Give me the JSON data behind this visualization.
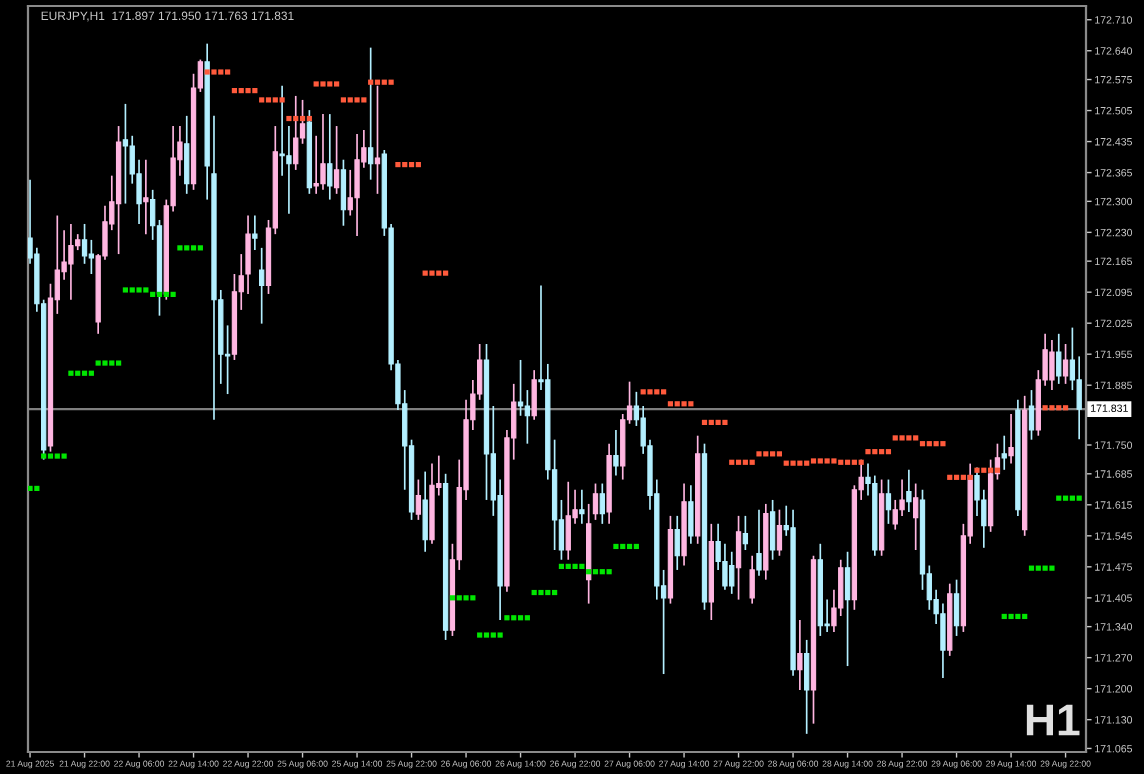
{
  "chart_data": {
    "type": "candlestick",
    "title": "EURJPY,H1  171.897 171.950 171.763 171.831",
    "annotations": [
      "H1"
    ],
    "categories": [
      "21 Aug 2025",
      null,
      null,
      null,
      null,
      null,
      null,
      null,
      "21 Aug 22:00",
      null,
      null,
      null,
      null,
      null,
      null,
      null,
      "22 Aug 06:00",
      null,
      null,
      null,
      null,
      null,
      null,
      null,
      "22 Aug 14:00",
      null,
      null,
      null,
      null,
      null,
      null,
      null,
      "22 Aug 22:00",
      null,
      null,
      null,
      null,
      null,
      null,
      null,
      "25 Aug 06:00",
      null,
      null,
      null,
      null,
      null,
      null,
      null,
      "25 Aug 14:00",
      null,
      null,
      null,
      null,
      null,
      null,
      null,
      "25 Aug 22:00",
      null,
      null,
      null,
      null,
      null,
      null,
      null,
      "26 Aug 06:00",
      null,
      null,
      null,
      null,
      null,
      null,
      null,
      "26 Aug 14:00",
      null,
      null,
      null,
      null,
      null,
      null,
      null,
      "26 Aug 22:00",
      null,
      null,
      null,
      null,
      null,
      null,
      null,
      "27 Aug 06:00",
      null,
      null,
      null,
      null,
      null,
      null,
      null,
      "27 Aug 14:00",
      null,
      null,
      null,
      null,
      null,
      null,
      null,
      "27 Aug 22:00",
      null,
      null,
      null,
      null,
      null,
      null,
      null,
      "28 Aug 06:00",
      null,
      null,
      null,
      null,
      null,
      null,
      null,
      "28 Aug 14:00",
      null,
      null,
      null,
      null,
      null,
      null,
      null,
      "28 Aug 22:00",
      null,
      null,
      null,
      null,
      null,
      null,
      null,
      "29 Aug 06:00",
      null,
      null,
      null,
      null,
      null,
      null,
      null,
      "29 Aug 14:00",
      null,
      null,
      null,
      null,
      null,
      null,
      null,
      "29 Aug 22:00",
      null,
      null
    ],
    "ohlc": [
      [
        172.217,
        172.349,
        172.159,
        172.172
      ],
      [
        172.181,
        172.195,
        172.051,
        172.069
      ],
      [
        172.069,
        172.078,
        171.717,
        171.739
      ],
      [
        171.748,
        172.114,
        171.735,
        172.082
      ],
      [
        172.078,
        172.268,
        172.046,
        172.145
      ],
      [
        172.141,
        172.235,
        172.123,
        172.163
      ],
      [
        172.159,
        172.249,
        172.078,
        172.2
      ],
      [
        172.2,
        172.226,
        172.19,
        172.213
      ],
      [
        172.213,
        172.249,
        172.159,
        172.177
      ],
      [
        172.181,
        172.213,
        172.136,
        172.172
      ],
      [
        172.028,
        172.181,
        172.001,
        172.177
      ],
      [
        172.177,
        172.29,
        172.168,
        172.254
      ],
      [
        172.249,
        172.358,
        172.235,
        172.299
      ],
      [
        172.295,
        172.47,
        172.181,
        172.434
      ],
      [
        172.439,
        172.52,
        172.295,
        172.425
      ],
      [
        172.425,
        172.448,
        172.34,
        172.362
      ],
      [
        172.362,
        172.394,
        172.249,
        172.295
      ],
      [
        172.299,
        172.394,
        172.226,
        172.308
      ],
      [
        172.304,
        172.326,
        172.213,
        172.245
      ],
      [
        172.245,
        172.258,
        172.042,
        172.091
      ],
      [
        172.091,
        172.304,
        172.078,
        172.29
      ],
      [
        172.29,
        172.47,
        172.277,
        172.398
      ],
      [
        172.394,
        172.47,
        172.358,
        172.434
      ],
      [
        172.43,
        172.493,
        172.317,
        172.34
      ],
      [
        172.34,
        172.588,
        172.326,
        172.556
      ],
      [
        172.556,
        172.62,
        172.547,
        172.615
      ],
      [
        172.615,
        172.656,
        172.304,
        172.38
      ],
      [
        172.362,
        172.493,
        171.807,
        172.078
      ],
      [
        172.078,
        172.1,
        171.888,
        171.955
      ],
      [
        171.955,
        172.02,
        171.865,
        171.951
      ],
      [
        171.955,
        172.136,
        171.942,
        172.096
      ],
      [
        172.096,
        172.181,
        172.055,
        172.132
      ],
      [
        172.136,
        172.268,
        172.091,
        172.226
      ],
      [
        172.226,
        172.268,
        172.19,
        172.217
      ],
      [
        172.145,
        172.195,
        172.024,
        172.11
      ],
      [
        172.11,
        172.258,
        172.091,
        172.24
      ],
      [
        172.24,
        172.47,
        172.226,
        172.412
      ],
      [
        172.407,
        172.561,
        172.358,
        172.403
      ],
      [
        172.403,
        172.47,
        172.272,
        172.385
      ],
      [
        172.385,
        172.538,
        172.371,
        172.443
      ],
      [
        172.443,
        172.529,
        172.43,
        172.475
      ],
      [
        172.479,
        172.506,
        172.317,
        172.331
      ],
      [
        172.335,
        172.448,
        172.317,
        172.34
      ],
      [
        172.34,
        172.497,
        172.326,
        172.385
      ],
      [
        172.385,
        172.497,
        172.304,
        172.335
      ],
      [
        172.331,
        172.47,
        172.317,
        172.371
      ],
      [
        172.371,
        172.394,
        172.245,
        172.281
      ],
      [
        172.281,
        172.371,
        172.268,
        172.308
      ],
      [
        172.308,
        172.452,
        172.222,
        172.394
      ],
      [
        172.389,
        172.461,
        172.376,
        172.421
      ],
      [
        172.421,
        172.647,
        172.349,
        172.385
      ],
      [
        172.385,
        172.561,
        172.317,
        172.398
      ],
      [
        172.407,
        172.416,
        172.222,
        172.24
      ],
      [
        172.24,
        172.249,
        171.919,
        171.933
      ],
      [
        171.933,
        171.942,
        171.829,
        171.843
      ],
      [
        171.843,
        171.874,
        171.649,
        171.748
      ],
      [
        171.748,
        171.762,
        171.581,
        171.599
      ],
      [
        171.594,
        171.672,
        171.581,
        171.636
      ],
      [
        171.626,
        171.69,
        171.509,
        171.536
      ],
      [
        171.536,
        171.708,
        171.527,
        171.659
      ],
      [
        171.654,
        171.726,
        171.636,
        171.663
      ],
      [
        171.663,
        171.685,
        171.31,
        171.332
      ],
      [
        171.332,
        171.527,
        171.319,
        171.491
      ],
      [
        171.491,
        171.717,
        171.468,
        171.654
      ],
      [
        171.649,
        171.852,
        171.626,
        171.807
      ],
      [
        171.807,
        171.897,
        171.784,
        171.865
      ],
      [
        171.865,
        171.978,
        171.852,
        171.942
      ],
      [
        171.942,
        171.978,
        171.626,
        171.73
      ],
      [
        171.73,
        171.838,
        171.59,
        171.626
      ],
      [
        171.636,
        171.672,
        171.355,
        171.432
      ],
      [
        171.432,
        171.784,
        171.419,
        171.766
      ],
      [
        171.766,
        171.888,
        171.717,
        171.847
      ],
      [
        171.847,
        171.942,
        171.816,
        171.838
      ],
      [
        171.838,
        171.874,
        171.753,
        171.816
      ],
      [
        171.816,
        171.919,
        171.807,
        171.897
      ],
      [
        171.897,
        172.11,
        171.874,
        171.893
      ],
      [
        171.897,
        171.933,
        171.672,
        171.694
      ],
      [
        171.694,
        171.762,
        171.513,
        171.581
      ],
      [
        171.581,
        171.626,
        171.491,
        171.513
      ],
      [
        171.513,
        171.667,
        171.491,
        171.59
      ],
      [
        171.586,
        171.649,
        171.572,
        171.604
      ],
      [
        171.604,
        171.649,
        171.572,
        171.595
      ],
      [
        171.446,
        171.617,
        171.392,
        171.572
      ],
      [
        171.595,
        171.663,
        171.581,
        171.64
      ],
      [
        171.64,
        171.663,
        171.572,
        171.595
      ],
      [
        171.599,
        171.753,
        171.572,
        171.726
      ],
      [
        171.726,
        171.784,
        171.681,
        171.703
      ],
      [
        171.703,
        171.82,
        171.672,
        171.807
      ],
      [
        171.807,
        171.893,
        171.798,
        171.838
      ],
      [
        171.838,
        171.87,
        171.793,
        171.807
      ],
      [
        171.811,
        171.838,
        171.73,
        171.748
      ],
      [
        171.748,
        171.762,
        171.604,
        171.636
      ],
      [
        171.64,
        171.672,
        171.401,
        171.432
      ],
      [
        171.432,
        171.468,
        171.233,
        171.405
      ],
      [
        171.405,
        171.59,
        171.392,
        171.559
      ],
      [
        171.559,
        171.59,
        171.468,
        171.5
      ],
      [
        171.5,
        171.663,
        171.478,
        171.622
      ],
      [
        171.622,
        171.659,
        171.527,
        171.545
      ],
      [
        171.545,
        171.771,
        171.527,
        171.73
      ],
      [
        171.73,
        171.753,
        171.378,
        171.396
      ],
      [
        171.396,
        171.572,
        171.355,
        171.532
      ],
      [
        171.532,
        171.572,
        171.468,
        171.487
      ],
      [
        171.487,
        171.527,
        171.423,
        171.432
      ],
      [
        171.478,
        171.509,
        171.414,
        171.432
      ],
      [
        171.473,
        171.59,
        171.401,
        171.554
      ],
      [
        171.55,
        171.59,
        171.513,
        171.527
      ],
      [
        171.405,
        171.5,
        171.392,
        171.468
      ],
      [
        171.505,
        171.604,
        171.455,
        171.468
      ],
      [
        171.468,
        171.617,
        171.446,
        171.595
      ],
      [
        171.599,
        171.626,
        171.491,
        171.513
      ],
      [
        171.513,
        171.604,
        171.5,
        171.568
      ],
      [
        171.568,
        171.613,
        171.545,
        171.559
      ],
      [
        171.563,
        171.604,
        171.229,
        171.243
      ],
      [
        171.243,
        171.355,
        171.197,
        171.279
      ],
      [
        171.279,
        171.31,
        171.098,
        171.197
      ],
      [
        171.197,
        171.5,
        171.121,
        171.491
      ],
      [
        171.491,
        171.527,
        171.319,
        171.342
      ],
      [
        171.346,
        171.401,
        171.328,
        171.342
      ],
      [
        171.342,
        171.423,
        171.328,
        171.382
      ],
      [
        171.382,
        171.491,
        171.364,
        171.473
      ],
      [
        171.473,
        171.509,
        171.251,
        171.401
      ],
      [
        171.401,
        171.659,
        171.378,
        171.649
      ],
      [
        171.649,
        171.717,
        171.626,
        171.677
      ],
      [
        171.677,
        171.708,
        171.636,
        171.663
      ],
      [
        171.663,
        171.681,
        171.5,
        171.513
      ],
      [
        171.513,
        171.672,
        171.5,
        171.64
      ],
      [
        171.64,
        171.672,
        171.572,
        171.604
      ],
      [
        171.572,
        171.626,
        171.559,
        171.604
      ],
      [
        171.604,
        171.672,
        171.59,
        171.626
      ],
      [
        171.645,
        171.694,
        171.599,
        171.622
      ],
      [
        171.586,
        171.663,
        171.513,
        171.631
      ],
      [
        171.626,
        171.649,
        171.423,
        171.459
      ],
      [
        171.459,
        171.478,
        171.378,
        171.401
      ],
      [
        171.401,
        171.423,
        171.346,
        171.369
      ],
      [
        171.369,
        171.392,
        171.224,
        171.287
      ],
      [
        171.287,
        171.437,
        171.274,
        171.414
      ],
      [
        171.414,
        171.446,
        171.319,
        171.342
      ],
      [
        171.342,
        171.572,
        171.328,
        171.545
      ],
      [
        171.545,
        171.708,
        171.527,
        171.681
      ],
      [
        171.681,
        171.699,
        171.59,
        171.626
      ],
      [
        171.626,
        171.649,
        171.518,
        171.568
      ],
      [
        171.568,
        171.717,
        171.554,
        171.685
      ],
      [
        171.685,
        171.753,
        171.672,
        171.721
      ],
      [
        171.73,
        171.771,
        171.694,
        171.721
      ],
      [
        171.726,
        171.82,
        171.708,
        171.744
      ],
      [
        171.829,
        171.852,
        171.59,
        171.604
      ],
      [
        171.559,
        171.861,
        171.545,
        171.829
      ],
      [
        171.838,
        171.874,
        171.762,
        171.784
      ],
      [
        171.784,
        171.919,
        171.771,
        171.897
      ],
      [
        171.897,
        172.001,
        171.884,
        171.965
      ],
      [
        171.897,
        171.987,
        171.874,
        171.96
      ],
      [
        171.96,
        172.001,
        171.888,
        171.906
      ],
      [
        171.906,
        171.978,
        171.888,
        171.942
      ],
      [
        171.942,
        172.015,
        171.874,
        171.897
      ],
      [
        171.897,
        171.95,
        171.763,
        171.831
      ]
    ],
    "colors": [
      "#b3efff",
      "#b3efff",
      "#b3efff",
      "#ffb6e1",
      "#ffb6e1",
      "#ffb6e1",
      "#ffb6e1",
      "#ffb6e1",
      "#b3efff",
      "#b3efff",
      "#ffb6e1",
      "#ffb6e1",
      "#ffb6e1",
      "#ffb6e1",
      "#b3efff",
      "#b3efff",
      "#b3efff",
      "#ffb6e1",
      "#b3efff",
      "#b3efff",
      "#ffb6e1",
      "#ffb6e1",
      "#ffb6e1",
      "#b3efff",
      "#ffb6e1",
      "#ffb6e1",
      "#b3efff",
      "#b3efff",
      "#b3efff",
      "#b3efff",
      "#ffb6e1",
      "#ffb6e1",
      "#ffb6e1",
      "#b3efff",
      "#b3efff",
      "#ffb6e1",
      "#ffb6e1",
      "#b3efff",
      "#b3efff",
      "#ffb6e1",
      "#ffb6e1",
      "#b3efff",
      "#ffb6e1",
      "#ffb6e1",
      "#b3efff",
      "#ffb6e1",
      "#b3efff",
      "#ffb6e1",
      "#ffb6e1",
      "#ffb6e1",
      "#b3efff",
      "#ffb6e1",
      "#b3efff",
      "#b3efff",
      "#b3efff",
      "#b3efff",
      "#b3efff",
      "#ffb6e1",
      "#b3efff",
      "#ffb6e1",
      "#ffb6e1",
      "#b3efff",
      "#ffb6e1",
      "#ffb6e1",
      "#ffb6e1",
      "#ffb6e1",
      "#ffb6e1",
      "#b3efff",
      "#b3efff",
      "#b3efff",
      "#ffb6e1",
      "#ffb6e1",
      "#b3efff",
      "#b3efff",
      "#ffb6e1",
      "#b3efff",
      "#b3efff",
      "#b3efff",
      "#b3efff",
      "#ffb6e1",
      "#ffb6e1",
      "#b3efff",
      "#ffb6e1",
      "#ffb6e1",
      "#b3efff",
      "#ffb6e1",
      "#b3efff",
      "#ffb6e1",
      "#ffb6e1",
      "#b3efff",
      "#b3efff",
      "#b3efff",
      "#b3efff",
      "#b3efff",
      "#ffb6e1",
      "#b3efff",
      "#ffb6e1",
      "#b3efff",
      "#ffb6e1",
      "#b3efff",
      "#ffb6e1",
      "#b3efff",
      "#b3efff",
      "#b3efff",
      "#ffb6e1",
      "#b3efff",
      "#ffb6e1",
      "#b3efff",
      "#ffb6e1",
      "#b3efff",
      "#ffb6e1",
      "#b3efff",
      "#b3efff",
      "#ffb6e1",
      "#b3efff",
      "#ffb6e1",
      "#b3efff",
      "#b3efff",
      "#ffb6e1",
      "#ffb6e1",
      "#b3efff",
      "#ffb6e1",
      "#ffb6e1",
      "#b3efff",
      "#b3efff",
      "#ffb6e1",
      "#b3efff",
      "#ffb6e1",
      "#ffb6e1",
      "#b3efff",
      "#ffb6e1",
      "#b3efff",
      "#b3efff",
      "#b3efff",
      "#b3efff",
      "#ffb6e1",
      "#b3efff",
      "#ffb6e1",
      "#ffb6e1",
      "#b3efff",
      "#b3efff",
      "#ffb6e1",
      "#ffb6e1",
      "#b3efff",
      "#ffb6e1",
      "#b3efff",
      "#ffb6e1",
      "#b3efff",
      "#ffb6e1",
      "#ffb6e1",
      "#ffb6e1",
      "#b3efff",
      "#ffb6e1",
      "#b3efff",
      "#b3efff"
    ],
    "series": [
      {
        "type": "scatter",
        "color": "#ff5a3c",
        "marker": "square",
        "values": [
          null,
          null,
          null,
          null,
          null,
          null,
          null,
          null,
          null,
          null,
          null,
          null,
          null,
          null,
          null,
          null,
          null,
          null,
          null,
          null,
          null,
          null,
          null,
          null,
          null,
          null,
          172.592,
          172.592,
          172.592,
          172.592,
          172.55,
          172.55,
          172.55,
          172.55,
          172.529,
          172.529,
          172.529,
          172.529,
          172.487,
          172.487,
          172.487,
          172.487,
          172.565,
          172.565,
          172.565,
          172.565,
          172.529,
          172.529,
          172.529,
          172.529,
          172.569,
          172.569,
          172.569,
          172.569,
          172.383,
          172.383,
          172.383,
          172.383,
          172.138,
          172.138,
          172.138,
          172.138,
          null,
          null,
          null,
          null,
          null,
          null,
          null,
          null,
          null,
          null,
          null,
          null,
          null,
          null,
          null,
          null,
          null,
          null,
          null,
          null,
          null,
          null,
          null,
          null,
          null,
          null,
          null,
          null,
          171.87,
          171.87,
          171.87,
          171.87,
          171.843,
          171.843,
          171.843,
          171.843,
          null,
          171.801,
          171.801,
          171.801,
          171.801,
          171.711,
          171.711,
          171.711,
          171.711,
          171.73,
          171.73,
          171.73,
          171.73,
          171.709,
          171.709,
          171.709,
          171.709,
          171.714,
          171.714,
          171.714,
          171.714,
          171.711,
          171.711,
          171.711,
          171.711,
          171.735,
          171.735,
          171.735,
          171.735,
          171.766,
          171.766,
          171.766,
          171.766,
          171.753,
          171.753,
          171.753,
          171.753,
          171.677,
          171.677,
          171.677,
          171.677,
          171.693,
          171.693,
          171.693,
          171.693,
          null,
          null,
          null,
          null,
          null,
          null,
          171.834,
          171.834,
          171.834,
          171.834,
          null,
          null
        ]
      },
      {
        "type": "scatter",
        "color": "#00e600",
        "marker": "square",
        "values": [
          171.652,
          171.652,
          171.725,
          171.725,
          171.725,
          171.725,
          171.912,
          171.912,
          171.912,
          171.912,
          171.935,
          171.935,
          171.935,
          171.935,
          172.1,
          172.1,
          172.1,
          172.1,
          172.09,
          172.09,
          172.09,
          172.09,
          172.195,
          172.195,
          172.195,
          172.195,
          null,
          null,
          null,
          null,
          null,
          null,
          null,
          null,
          null,
          null,
          null,
          null,
          null,
          null,
          null,
          null,
          null,
          null,
          null,
          null,
          null,
          null,
          null,
          null,
          null,
          null,
          null,
          null,
          null,
          null,
          null,
          null,
          null,
          null,
          null,
          null,
          171.405,
          171.405,
          171.405,
          171.405,
          171.321,
          171.321,
          171.321,
          171.321,
          171.36,
          171.36,
          171.36,
          171.36,
          171.417,
          171.417,
          171.417,
          171.417,
          171.476,
          171.476,
          171.476,
          171.476,
          171.464,
          171.464,
          171.464,
          171.464,
          171.521,
          171.521,
          171.521,
          171.521,
          null,
          null,
          null,
          null,
          null,
          null,
          null,
          null,
          null,
          null,
          null,
          null,
          null,
          null,
          null,
          null,
          null,
          null,
          null,
          null,
          null,
          null,
          null,
          null,
          null,
          null,
          null,
          null,
          null,
          null,
          null,
          null,
          null,
          null,
          null,
          null,
          null,
          null,
          null,
          null,
          null,
          null,
          null,
          null,
          null,
          null,
          null,
          null,
          null,
          null,
          null,
          null,
          null,
          171.363,
          171.363,
          171.363,
          171.363,
          171.472,
          171.472,
          171.472,
          171.472,
          171.63,
          171.63,
          171.63,
          171.63
        ]
      }
    ],
    "ylim": [
      171.057,
      172.741
    ],
    "yticks": [
      {
        "value": 172.71,
        "label": "172.710"
      },
      {
        "value": 172.64,
        "label": "172.640"
      },
      {
        "value": 172.575,
        "label": "172.575"
      },
      {
        "value": 172.505,
        "label": "172.505"
      },
      {
        "value": 172.435,
        "label": "172.435"
      },
      {
        "value": 172.365,
        "label": "172.365"
      },
      {
        "value": 172.3,
        "label": "172.300"
      },
      {
        "value": 172.23,
        "label": "172.230"
      },
      {
        "value": 172.165,
        "label": "172.165"
      },
      {
        "value": 172.095,
        "label": "172.095"
      },
      {
        "value": 172.025,
        "label": "172.025"
      },
      {
        "value": 171.955,
        "label": "171.955"
      },
      {
        "value": 171.885,
        "label": "171.885"
      },
      {
        "value": 171.75,
        "label": "171.750"
      },
      {
        "value": 171.685,
        "label": "171.685"
      },
      {
        "value": 171.615,
        "label": "171.615"
      },
      {
        "value": 171.545,
        "label": "171.545"
      },
      {
        "value": 171.475,
        "label": "171.475"
      },
      {
        "value": 171.405,
        "label": "171.405"
      },
      {
        "value": 171.34,
        "label": "171.340"
      },
      {
        "value": 171.27,
        "label": "171.270"
      },
      {
        "value": 171.2,
        "label": "171.200"
      },
      {
        "value": 171.13,
        "label": "171.130"
      },
      {
        "value": 171.065,
        "label": "171.065"
      }
    ],
    "ref_lines": [
      {
        "axis": "y",
        "value": 171.831,
        "label": "171.831",
        "color": "#7f7f7f"
      }
    ]
  }
}
